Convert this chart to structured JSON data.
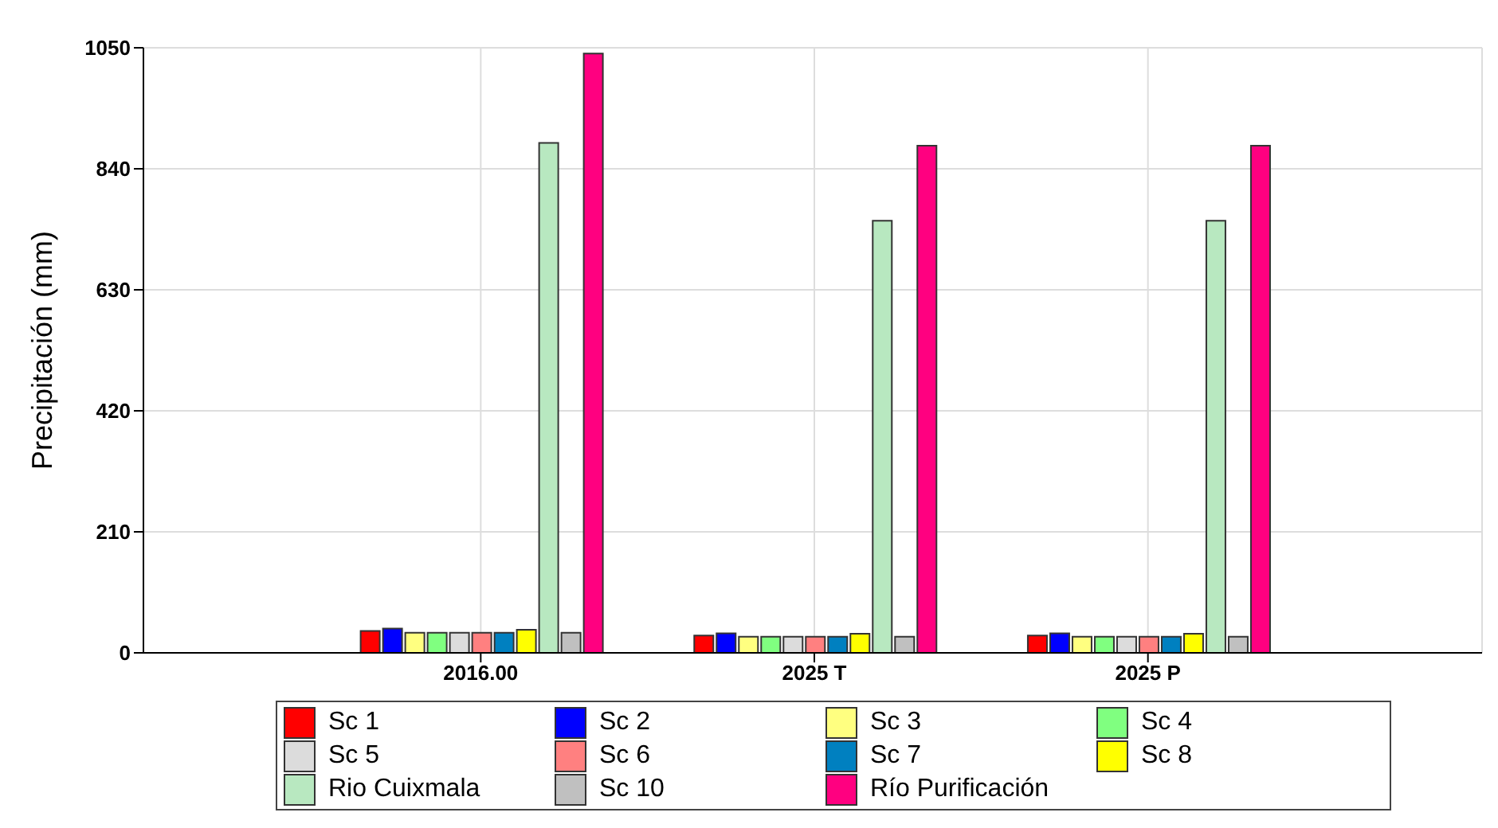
{
  "chart_data": {
    "type": "bar",
    "ylabel": "Precipitación (mm)",
    "categories": [
      "2016.00",
      "2025 T",
      "2025 P"
    ],
    "series": [
      {
        "name": "Sc 1",
        "color": "#ff0000",
        "values": [
          38,
          30,
          30
        ]
      },
      {
        "name": "Sc 2",
        "color": "#0000ff",
        "values": [
          42,
          34,
          34
        ]
      },
      {
        "name": "Sc 3",
        "color": "#ffff80",
        "values": [
          35,
          28,
          28
        ]
      },
      {
        "name": "Sc 4",
        "color": "#80ff80",
        "values": [
          35,
          28,
          28
        ]
      },
      {
        "name": "Sc 5",
        "color": "#dcdcdc",
        "values": [
          35,
          28,
          28
        ]
      },
      {
        "name": "Sc 6",
        "color": "#ff8080",
        "values": [
          35,
          28,
          28
        ]
      },
      {
        "name": "Sc 7",
        "color": "#0080c0",
        "values": [
          35,
          28,
          28
        ]
      },
      {
        "name": "Sc 8",
        "color": "#ffff00",
        "values": [
          40,
          33,
          33
        ]
      },
      {
        "name": "Rio Cuixmala",
        "color": "#b8e8c0",
        "values": [
          885,
          750,
          750
        ]
      },
      {
        "name": "Sc 10",
        "color": "#c0c0c0",
        "values": [
          35,
          28,
          28
        ]
      },
      {
        "name": "Río Purificación",
        "color": "#ff0080",
        "values": [
          1040,
          880,
          880
        ]
      }
    ],
    "ylim": [
      0,
      1050
    ],
    "yticks": [
      0,
      210,
      420,
      630,
      840,
      1050
    ],
    "grid": true,
    "legend": "bottom"
  }
}
